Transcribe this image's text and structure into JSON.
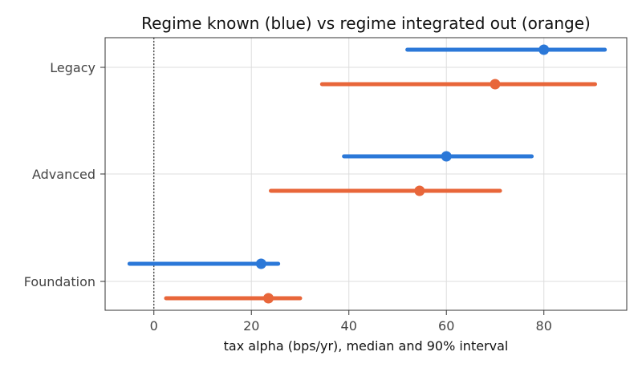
{
  "chart_data": {
    "type": "interval",
    "title": "Regime known (blue) vs regime integrated out (orange)",
    "xlabel": "tax alpha (bps/yr), median and 90% interval",
    "ylabel": "",
    "xlim": [
      -10,
      97
    ],
    "xticks": [
      0,
      20,
      40,
      60,
      80
    ],
    "grid": true,
    "reference_line": {
      "x": 0,
      "style": "dotted"
    },
    "categories": [
      "Legacy",
      "Advanced",
      "Foundation"
    ],
    "series": [
      {
        "color": "#2b78d8",
        "values": [
          {
            "category": "Legacy",
            "median": 80,
            "low": 52,
            "high": 92.5
          },
          {
            "category": "Advanced",
            "median": 60,
            "low": 39,
            "high": 77.5
          },
          {
            "category": "Foundation",
            "median": 22,
            "low": -5,
            "high": 25.5
          }
        ]
      },
      {
        "color": "#e8663a",
        "values": [
          {
            "category": "Legacy",
            "median": 70,
            "low": 34.5,
            "high": 90.5
          },
          {
            "category": "Advanced",
            "median": 54.5,
            "low": 24,
            "high": 71
          },
          {
            "category": "Foundation",
            "median": 23.5,
            "low": 2.5,
            "high": 30
          }
        ]
      }
    ]
  }
}
